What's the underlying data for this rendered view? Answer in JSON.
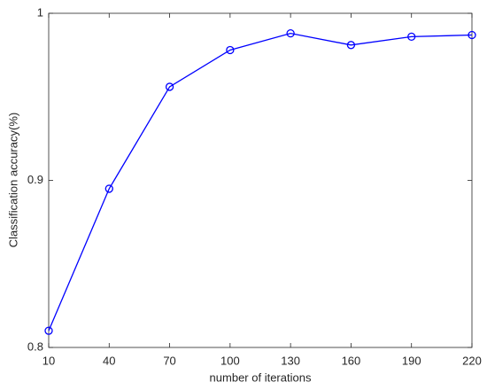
{
  "chart_data": {
    "type": "line",
    "x_label": "number of iterations",
    "y_label": "Classification accuracy(%)",
    "x": [
      10,
      40,
      70,
      100,
      130,
      160,
      190,
      220
    ],
    "series": [
      {
        "name": null,
        "color": "#0000ff",
        "values": [
          0.81,
          0.895,
          0.956,
          0.978,
          0.988,
          0.981,
          0.986,
          0.987
        ]
      }
    ],
    "xlim": [
      10,
      220
    ],
    "xticks": [
      10,
      40,
      70,
      100,
      130,
      160,
      190,
      220
    ],
    "ylim": [
      0.8,
      1
    ],
    "yticks": [
      0.8,
      0.9,
      1
    ],
    "marker": "circle",
    "grid": false
  }
}
